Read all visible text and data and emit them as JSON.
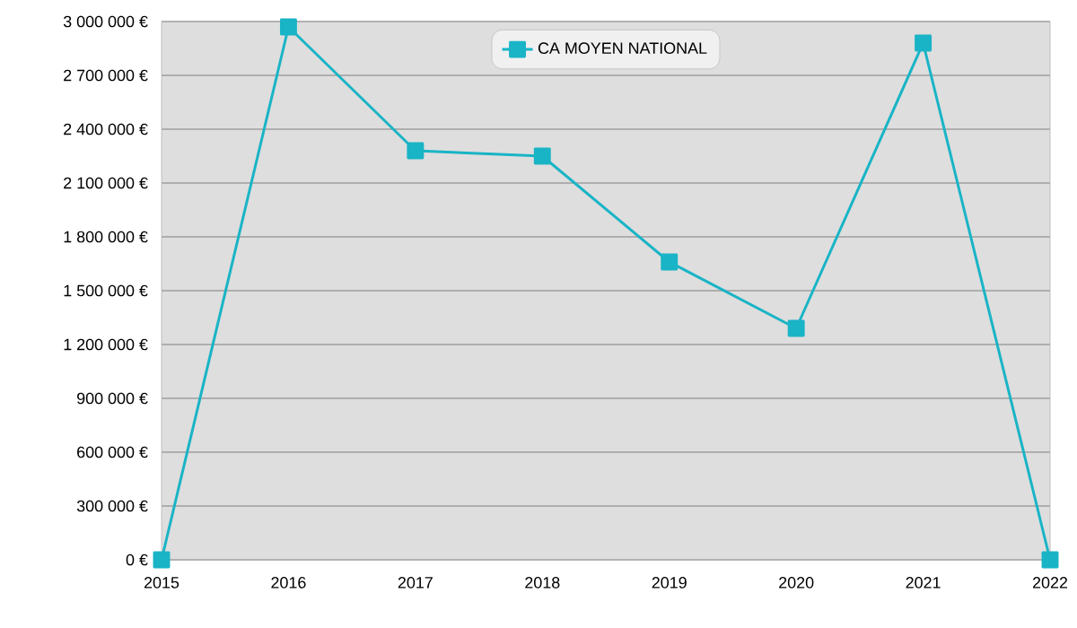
{
  "chart_data": {
    "type": "line",
    "x": [
      2015,
      2016,
      2017,
      2018,
      2019,
      2020,
      2021,
      2022
    ],
    "series": [
      {
        "name": "CA MOYEN NATIONAL",
        "color": "#19b4c6",
        "values": [
          0,
          2970000,
          2280000,
          2250000,
          1660000,
          1290000,
          2880000,
          0
        ]
      }
    ],
    "xlim": [
      2015,
      2022
    ],
    "xticks": [
      2015,
      2016,
      2017,
      2018,
      2019,
      2020,
      2021,
      2022
    ],
    "ylim": [
      0,
      3000000
    ],
    "yticks": [
      {
        "value": 0,
        "label": "0 €"
      },
      {
        "value": 300000,
        "label": "300 000 €"
      },
      {
        "value": 600000,
        "label": "600 000 €"
      },
      {
        "value": 900000,
        "label": "900 000 €"
      },
      {
        "value": 1200000,
        "label": "1 200 000 €"
      },
      {
        "value": 1500000,
        "label": "1 500 000 €"
      },
      {
        "value": 1800000,
        "label": "1 800 000 €"
      },
      {
        "value": 2100000,
        "label": "2 100 000 €"
      },
      {
        "value": 2400000,
        "label": "2 400 000 €"
      },
      {
        "value": 2700000,
        "label": "2 700 000 €"
      },
      {
        "value": 3000000,
        "label": "3 000 000 €"
      }
    ],
    "grid": "y",
    "legend": "top",
    "marker": "square",
    "line_style": "solid"
  }
}
